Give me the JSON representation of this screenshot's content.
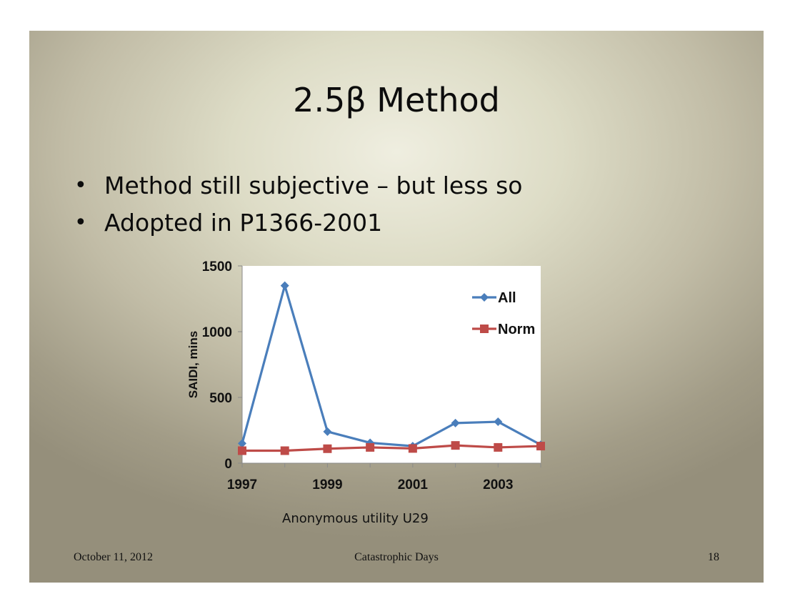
{
  "slide": {
    "title": "2.5β Method",
    "bullets": [
      "Method still subjective – but less so",
      "Adopted in P1366-2001"
    ],
    "caption": "Anonymous utility U29",
    "footer": {
      "date": "October 11, 2012",
      "center": "Catastrophic Days",
      "page": "18"
    }
  },
  "chart_data": {
    "type": "line",
    "x": [
      1997,
      1998,
      1999,
      2000,
      2001,
      2002,
      2003,
      2004
    ],
    "x_ticks": [
      "1997",
      "1999",
      "2001",
      "2003"
    ],
    "y_ticks": [
      "0",
      "500",
      "1000",
      "1500"
    ],
    "ylabel": "SAIDI, mins",
    "ylim": [
      0,
      1500
    ],
    "xlim": [
      1997,
      2004
    ],
    "legend": "top-right",
    "series": [
      {
        "name": "All",
        "color": "#4a7ebb",
        "marker": "diamond",
        "values": [
          150,
          1350,
          240,
          155,
          130,
          305,
          315,
          140
        ]
      },
      {
        "name": "Norm",
        "color": "#be4b48",
        "marker": "square",
        "values": [
          95,
          95,
          110,
          120,
          112,
          135,
          120,
          130
        ]
      }
    ]
  }
}
